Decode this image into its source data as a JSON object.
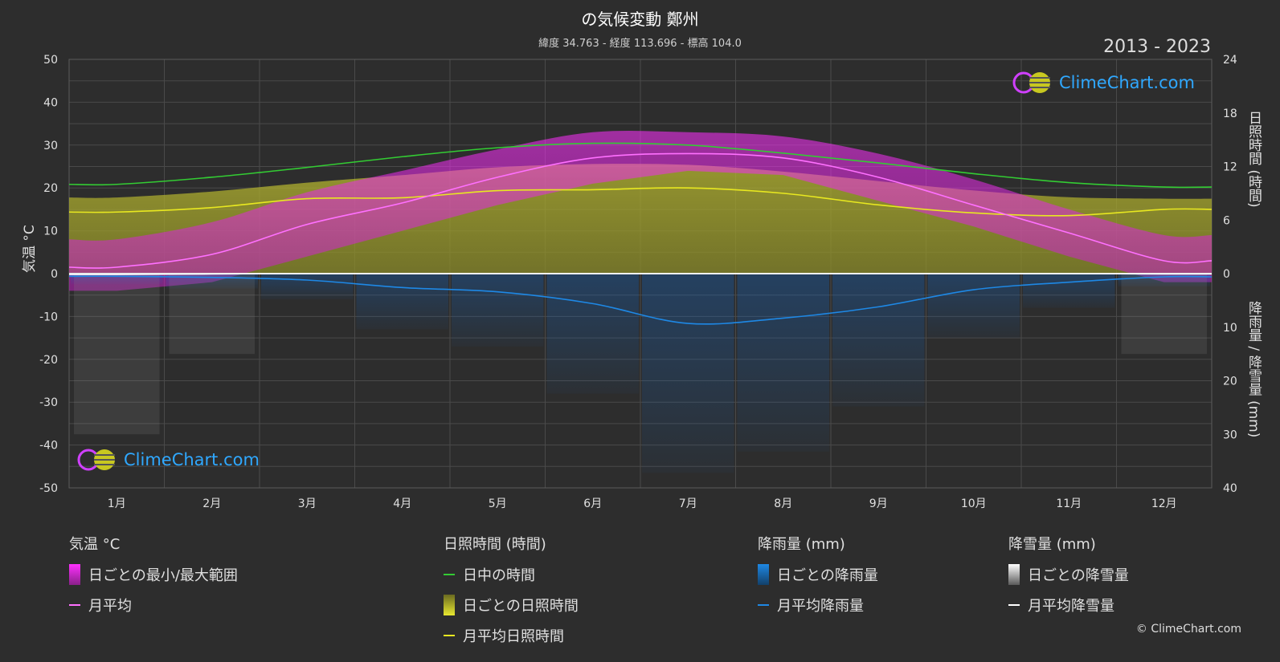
{
  "header": {
    "title": "の気候変動 鄭州",
    "subtitle": "緯度 34.763 - 経度 113.696 - 標高 104.0",
    "years": "2013 - 2023"
  },
  "axes": {
    "left_title": "気温 °C",
    "right_top_title": "日照時間 (時間)",
    "right_bottom_title": "降雨量 / 降雪量 (mm)"
  },
  "logo": {
    "text": "ClimeChart.com"
  },
  "copyright": "© ClimeChart.com",
  "legend": {
    "temperature": {
      "heading": "気温 °C",
      "items": [
        {
          "label": "日ごとの最小/最大範囲",
          "color": "#e030e0"
        },
        {
          "label": "月平均",
          "color": "#ff70ff"
        }
      ]
    },
    "sunshine": {
      "heading": "日照時間 (時間)",
      "items": [
        {
          "label": "日中の時間",
          "color": "#33cc33"
        },
        {
          "label": "日ごとの日照時間",
          "color": "#d4d437"
        },
        {
          "label": "月平均日照時間",
          "color": "#e8e820"
        }
      ]
    },
    "rain": {
      "heading": "降雨量 (mm)",
      "items": [
        {
          "label": "日ごとの降雨量",
          "color": "#1e88e5"
        },
        {
          "label": "月平均降雨量",
          "color": "#1e88e5"
        }
      ]
    },
    "snow": {
      "heading": "降雪量 (mm)",
      "items": [
        {
          "label": "日ごとの降雪量",
          "color": "#dddddd"
        },
        {
          "label": "月平均降雪量",
          "color": "#ffffff"
        }
      ]
    }
  },
  "chart_data": {
    "type": "line",
    "categories": [
      "1月",
      "2月",
      "3月",
      "4月",
      "5月",
      "6月",
      "7月",
      "8月",
      "9月",
      "10月",
      "11月",
      "12月"
    ],
    "y_left": {
      "label": "気温 °C",
      "range": [
        -50,
        50
      ],
      "ticks": [
        50,
        40,
        30,
        20,
        10,
        0,
        -10,
        -20,
        -30,
        -40,
        -50
      ]
    },
    "y_right_top": {
      "label": "日照時間 (時間)",
      "range": [
        0,
        24
      ],
      "ticks": [
        24,
        18,
        12,
        6,
        0
      ]
    },
    "y_right_bottom": {
      "label": "降雨量 / 降雪量 (mm)",
      "range": [
        0,
        40
      ],
      "ticks": [
        0,
        10,
        20,
        30,
        40
      ]
    },
    "grid": true,
    "series": [
      {
        "name": "日中の時間",
        "axis": "sunshine_hours",
        "color": "#33cc33",
        "values": [
          10.0,
          10.8,
          11.9,
          13.1,
          14.1,
          14.6,
          14.4,
          13.5,
          12.4,
          11.2,
          10.2,
          9.7
        ]
      },
      {
        "name": "月平均日照時間",
        "axis": "sunshine_hours",
        "color": "#e8e820",
        "values": [
          6.9,
          7.4,
          8.4,
          8.5,
          9.3,
          9.4,
          9.6,
          9.0,
          7.7,
          6.8,
          6.5,
          7.2
        ]
      },
      {
        "name": "月平均",
        "axis": "temperature_c",
        "color": "#ff70ff",
        "values": [
          1.5,
          4.5,
          11.5,
          16.5,
          22.5,
          27.0,
          28.0,
          27.0,
          22.5,
          16.0,
          9.5,
          3.0
        ]
      },
      {
        "name": "日ごとの最小/最大範囲",
        "axis": "temperature_c",
        "color": "#e030e0",
        "min": [
          -4,
          -2,
          4,
          10,
          16,
          21,
          24,
          23,
          17,
          11,
          4,
          -2
        ],
        "max": [
          8,
          12,
          19,
          24,
          29,
          33,
          33,
          32,
          28,
          22,
          15,
          9
        ]
      },
      {
        "name": "月平均降雨量",
        "axis": "precip_mm",
        "color": "#1e88e5",
        "values": [
          0.5,
          0.7,
          1.2,
          2.6,
          3.4,
          5.6,
          9.3,
          8.3,
          6.2,
          3.0,
          1.6,
          0.6
        ]
      },
      {
        "name": "月平均降雪量",
        "axis": "precip_mm",
        "color": "#ffffff",
        "values": [
          0.2,
          0.1,
          0.0,
          0.0,
          0.0,
          0.0,
          0.0,
          0.0,
          0.0,
          0.0,
          0.0,
          0.1
        ]
      }
    ]
  }
}
